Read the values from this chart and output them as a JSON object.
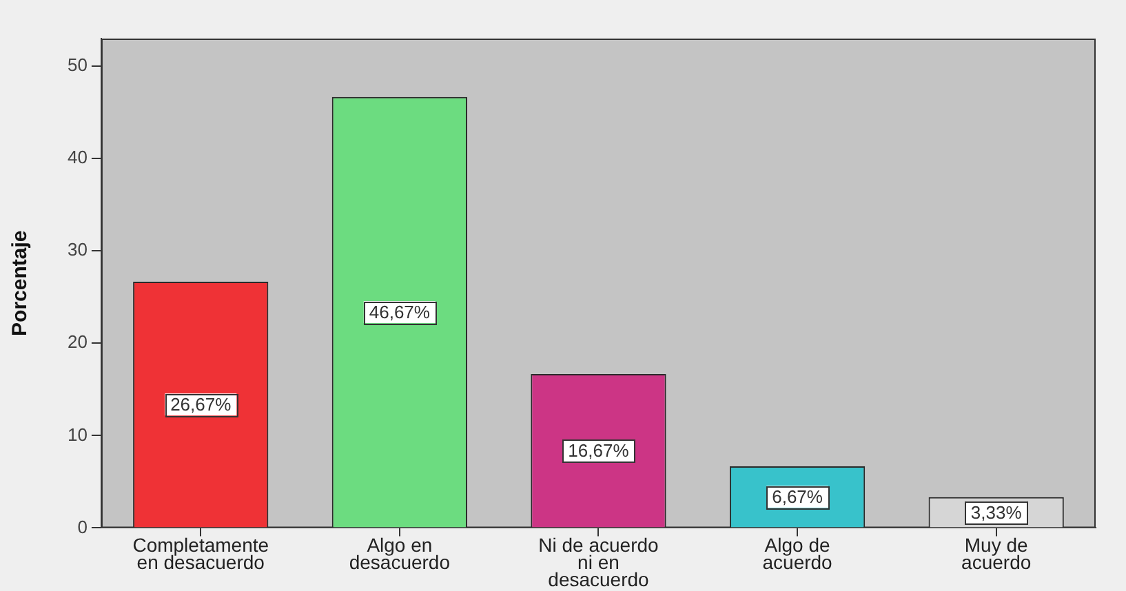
{
  "chart_data": {
    "type": "bar",
    "ylabel": "Porcentaje",
    "categories": [
      "Completamente en desacuerdo",
      "Algo en desacuerdo",
      "Ni de acuerdo ni en desacuerdo",
      "Algo de acuerdo",
      "Muy de acuerdo"
    ],
    "values": [
      26.67,
      46.67,
      16.67,
      6.67,
      3.33
    ],
    "colors": [
      "#ef3236",
      "#6cdc80",
      "#cc3585",
      "#38c2cb",
      "#d6d6d6"
    ],
    "value_labels": [
      "26,67%",
      "46,67%",
      "16,67%",
      "6,67%",
      "3,33%"
    ],
    "ylim": [
      0,
      53
    ],
    "yticks": [
      0,
      10,
      20,
      30,
      40,
      50
    ]
  }
}
